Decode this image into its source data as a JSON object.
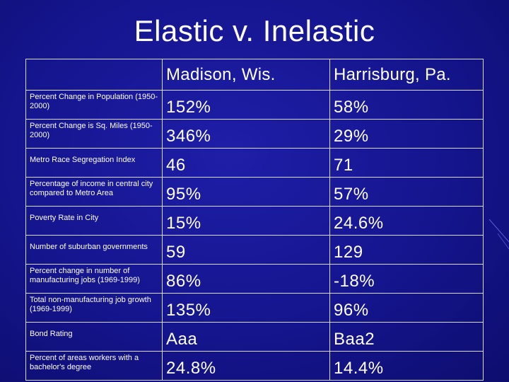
{
  "slide": {
    "title": "Elastic v. Inelastic"
  },
  "table": {
    "header": {
      "corner": "",
      "madison": "Madison, Wis.",
      "harrisburg": "Harrisburg, Pa."
    },
    "rows": [
      {
        "label": "Percent Change in Population (1950-2000)",
        "madison": "152%",
        "harrisburg": "58%"
      },
      {
        "label": "Percent Change is Sq. Miles (1950-2000)",
        "madison": "346%",
        "harrisburg": "29%"
      },
      {
        "label": "Metro Race Segregation Index",
        "madison": "46",
        "harrisburg": "71"
      },
      {
        "label": "Percentage of income in central city compared to Metro Area",
        "madison": "95%",
        "harrisburg": "57%"
      },
      {
        "label": "Poverty Rate in City",
        "madison": "15%",
        "harrisburg": "24.6%"
      },
      {
        "label": "Number of suburban governments",
        "madison": "59",
        "harrisburg": "129"
      },
      {
        "label": "Percent change in number of manufacturing jobs (1969-1999)",
        "madison": "86%",
        "harrisburg": "-18%"
      },
      {
        "label": "Total non-manufacturing job growth (1969-1999)",
        "madison": "135%",
        "harrisburg": "96%"
      },
      {
        "label": "Bond Rating",
        "madison": "Aaa",
        "harrisburg": "Baa2"
      },
      {
        "label": "Percent of areas workers with a bachelor's degree",
        "madison": "24.8%",
        "harrisburg": "14.4%"
      }
    ]
  },
  "colors": {
    "background": "#15158e",
    "text": "#ffffff",
    "grid_line": "#d8d8e8"
  }
}
